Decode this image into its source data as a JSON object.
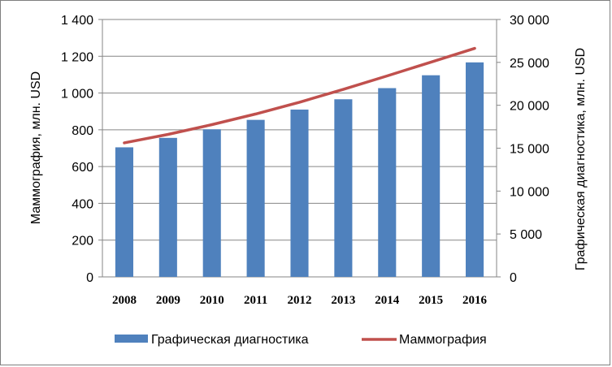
{
  "chart_data": {
    "type": "bar",
    "categories": [
      "2008",
      "2009",
      "2010",
      "2011",
      "2012",
      "2013",
      "2014",
      "2015",
      "2016"
    ],
    "series": [
      {
        "name": "Графическая диагностика",
        "kind": "bar",
        "axis": "right",
        "color": "#4F81BD",
        "values": [
          15100,
          16200,
          17200,
          18300,
          19500,
          20700,
          22000,
          23500,
          25000
        ]
      },
      {
        "name": "Маммография",
        "kind": "line",
        "axis": "left",
        "color": "#C0504D",
        "values": [
          729,
          775,
          828,
          886,
          950,
          1020,
          1093,
          1168,
          1243
        ]
      }
    ],
    "ylabel_left": "Маммография, млн. USD",
    "ylabel_right": "Графическая диагностика, млн. USD",
    "ylim_left": [
      0,
      1400
    ],
    "ylim_right": [
      0,
      30000
    ],
    "yticks_left": [
      "0",
      "200",
      "400",
      "600",
      "800",
      "1 000",
      "1 200",
      "1 400"
    ],
    "yticks_right": [
      "0",
      "5 000",
      "10 000",
      "15 000",
      "20 000",
      "25 000",
      "30 000"
    ],
    "grid": "horizontal",
    "legend_position": "bottom"
  }
}
